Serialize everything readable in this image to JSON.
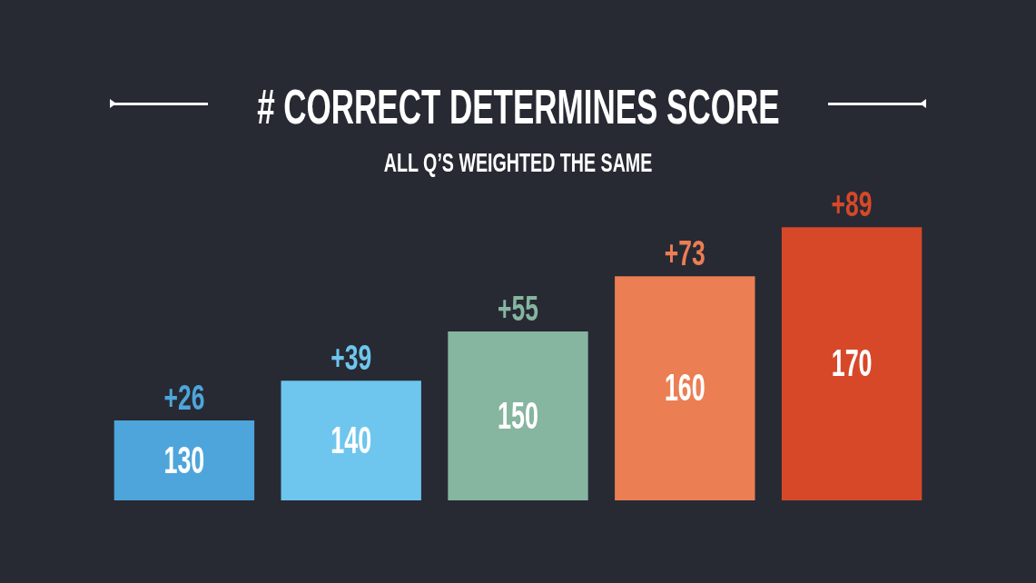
{
  "chart_data": {
    "type": "bar",
    "title": "# CORRECT DETERMINES SCORE",
    "subtitle": "ALL Q’S WEIGHTED THE SAME",
    "categories": [
      "130",
      "140",
      "150",
      "160",
      "170"
    ],
    "values": [
      26,
      39,
      55,
      73,
      89
    ],
    "colors": [
      "#4ea5db",
      "#6ec6ee",
      "#86b5a0",
      "#ec7e54",
      "#d74829"
    ],
    "value_labels": [
      "+26",
      "+39",
      "+55",
      "+73",
      "+89"
    ]
  }
}
